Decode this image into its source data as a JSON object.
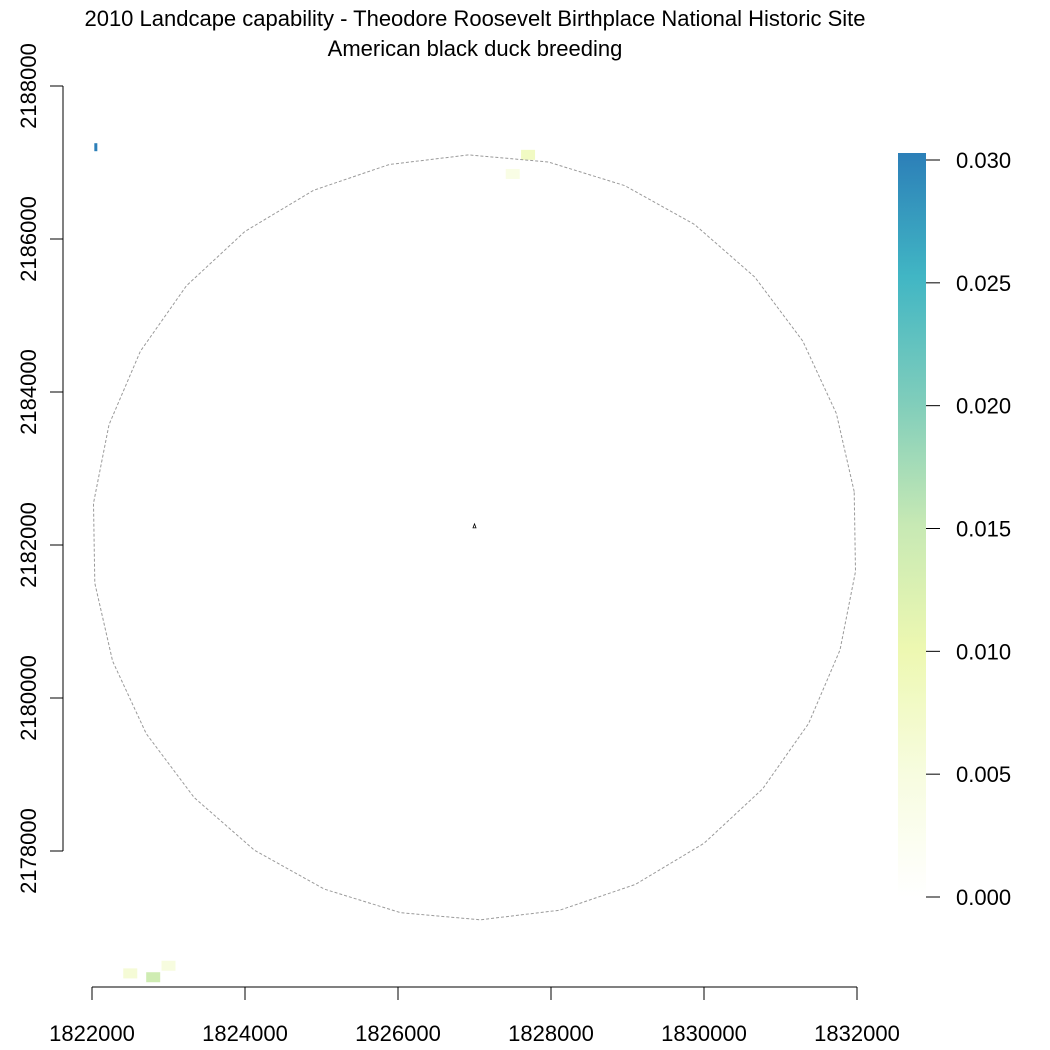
{
  "title": "2010 Landcape capability - Theodore Roosevelt Birthplace National Historic Site",
  "subtitle": "American black duck breeding",
  "chart_data": {
    "type": "heatmap",
    "title": "2010 Landcape capability - Theodore Roosevelt Birthplace National Historic Site",
    "subtitle": "American black duck breeding",
    "x_ticks": [
      1822000,
      1824000,
      1826000,
      1828000,
      1830000,
      1832000
    ],
    "x_tick_labels": [
      "1822000",
      "1824000",
      "1826000",
      "1828000",
      "1830000",
      "1832000"
    ],
    "y_ticks": [
      2178000,
      2180000,
      2182000,
      2184000,
      2186000,
      2188000
    ],
    "y_tick_labels": [
      "2178000",
      "2180000",
      "2182000",
      "2184000",
      "2186000",
      "2188000"
    ],
    "xlim": [
      1822000,
      1832000
    ],
    "ylim": [
      2178000,
      2188000
    ],
    "legend": {
      "placement": "right",
      "ticks": [
        0.0,
        0.005,
        0.01,
        0.015,
        0.02,
        0.025,
        0.03
      ],
      "tick_labels": [
        "0.000",
        "0.005",
        "0.010",
        "0.015",
        "0.020",
        "0.025",
        "0.030"
      ],
      "range": [
        0,
        0.03
      ],
      "colors": [
        "#ffffff",
        "#f7fcdf",
        "#edf8b1",
        "#c7e9b4",
        "#7fcdbb",
        "#41b6c4",
        "#2c7fb8"
      ]
    },
    "buffer_circle": {
      "center": [
        1827000,
        2182100
      ],
      "radius": 5000,
      "style": "dashed-gray"
    },
    "site_marker": [
      1827000,
      2182250
    ],
    "patches": [
      {
        "x": 1822050,
        "y": 2187200,
        "value": 0.03
      },
      {
        "x": 1827500,
        "y": 2186850,
        "value": 0.004
      },
      {
        "x": 1827700,
        "y": 2187100,
        "value": 0.008
      },
      {
        "x": 1822500,
        "y": 2176400,
        "value": 0.006
      },
      {
        "x": 1822800,
        "y": 2176350,
        "value": 0.014
      },
      {
        "x": 1823000,
        "y": 2176500,
        "value": 0.005
      }
    ]
  }
}
